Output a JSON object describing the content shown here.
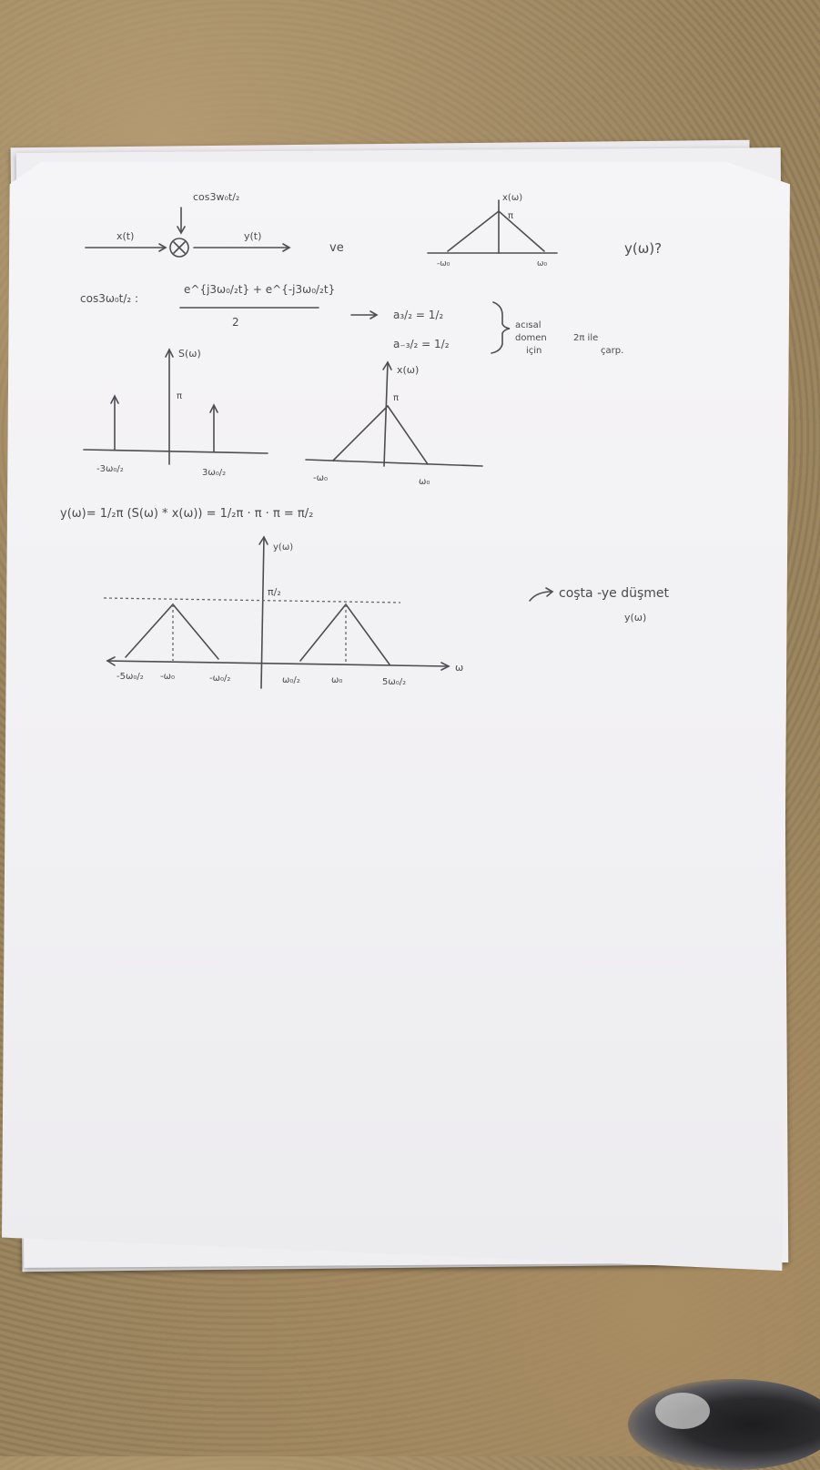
{
  "notes": {
    "block_input": "x(t)",
    "block_carrier": "cos3w₀t/₂",
    "block_output": "y(t)",
    "connector_ve": "ve",
    "given_label": "x(ω)",
    "given_peak": "π",
    "given_neg": "-ω₀",
    "given_pos": "ω₀",
    "question": "y(ω)?",
    "euler_lhs": "cos3ω₀t/₂ :",
    "euler_num": "e^{j3ω₀/₂t} + e^{-j3ω₀/₂t}",
    "euler_den": "2",
    "coef1": "a₃/₂ = 1/₂",
    "coef2": "a₋₃/₂ = 1/₂",
    "note_right1": "acısal",
    "note_right2": "domen",
    "note_right3": "için",
    "note_right4": "2π ile",
    "note_right5": "çarp.",
    "s_label": "S(ω)",
    "s_amp": "π",
    "s_neg": "-3ω₀/₂",
    "s_pos": "3ω₀/₂",
    "x_label": "x(ω)",
    "x_peak": "π",
    "x_neg": "-ω₀",
    "x_pos": "ω₀",
    "convolution": "y(ω)= 1/₂π (S(ω) * x(ω)) = 1/₂π · π · π = π/₂",
    "y_label": "y(ω)",
    "y_level": "π/₂",
    "y_axis": "ω",
    "y_t1": "-5ω₀/₂",
    "y_t2": "-ω₀",
    "y_t3": "-ω₀/₂",
    "y_t4": "ω₀/₂",
    "y_t5": "ω₀",
    "y_t6": "5ω₀/₂",
    "side_note1": "coşta -ye düşmet",
    "side_note2": "y(ω)"
  }
}
